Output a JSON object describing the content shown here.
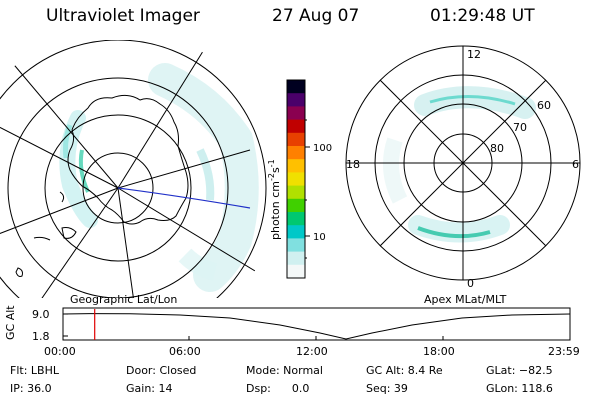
{
  "header": {
    "title": "Ultraviolet Imager",
    "date": "27 Aug 07",
    "time": "01:29:48 UT"
  },
  "colorbar": {
    "unit": "photon cm",
    "unit_exp": "-2",
    "unit_s": "s",
    "unit_s_exp": "-1",
    "ticks": [
      "100",
      "10"
    ],
    "colors": [
      "#000020",
      "#4a006a",
      "#8a0050",
      "#c00000",
      "#e84000",
      "#ff8000",
      "#ffc000",
      "#f0e000",
      "#b0e000",
      "#40d000",
      "#00c870",
      "#00c8c8",
      "#80e0e0",
      "#d0f0f0",
      "#f4f8f8"
    ]
  },
  "geo_panel": {
    "label": "Geographic Lat/Lon"
  },
  "mag_panel": {
    "label": "Apex MLat/MLT",
    "mlt_labels": {
      "top": "12",
      "left": "18",
      "right": "6",
      "bottom": "0"
    },
    "lat_labels": [
      "60",
      "70",
      "80"
    ]
  },
  "timeline": {
    "ylabel": "GC Alt",
    "ytick_top": "9.0",
    "ytick_bottom": "1.8",
    "xticks": [
      "00:00",
      "06:00",
      "12:00",
      "18:00",
      "23:59"
    ],
    "marker_hours": 1.5,
    "marker_color": "#e00000"
  },
  "info": {
    "filter": "Flt: LBHL",
    "door": "Door: Closed",
    "mode": "Mode: Normal",
    "gc_alt": "GC Alt: 8.4 Re",
    "glat": "GLat: −82.5",
    "ip": "IP: 36.0",
    "gain": "Gain: 14",
    "dsp": "Dsp:      0.0",
    "seq": "Seq: 39",
    "glon": "GLon: 118.6"
  }
}
